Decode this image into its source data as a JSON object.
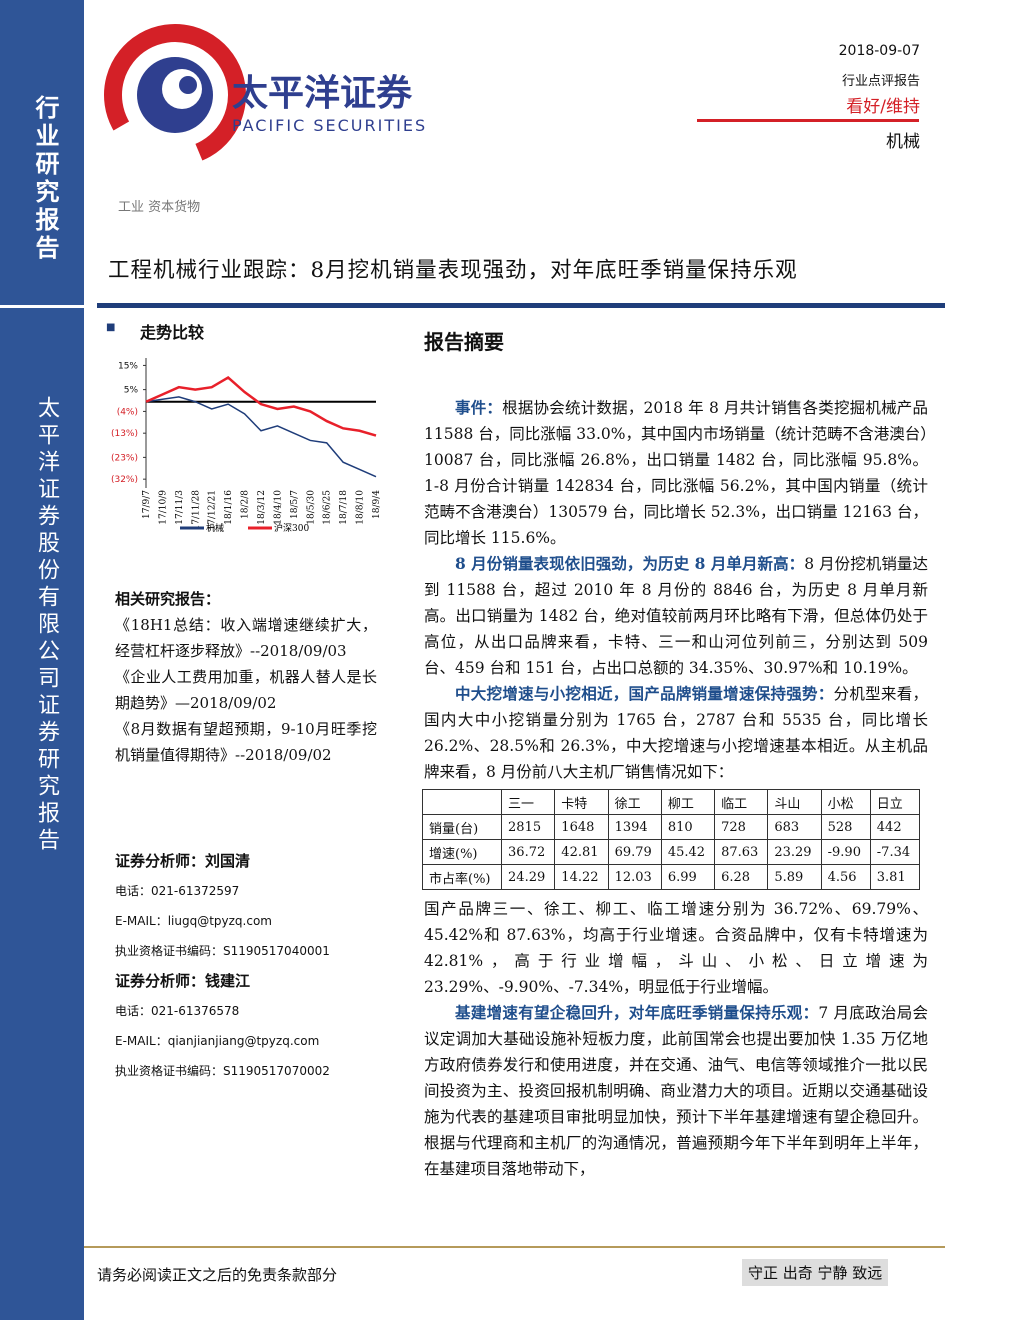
{
  "header": {
    "logo_cn": "太平洋证券",
    "logo_en": "PACIFIC SECURITIES",
    "date": "2018-09-07",
    "report_type": "行业点评报告",
    "rating": "看好/维持",
    "industry": "机械"
  },
  "sidebar": {
    "top": "行业研究报告",
    "bottom": "太平洋证券股份有限公司证券研究报告"
  },
  "sector": "工业 资本货物",
  "title": "工程机械行业跟踪：8月挖机销量表现强劲，对年底旺季销量保持乐观",
  "trend": {
    "heading": "走势比较",
    "chart": {
      "type": "line",
      "categories": [
        "17/9/7",
        "17/10/9",
        "17/11/3",
        "17/11/28",
        "17/12/21",
        "18/1/16",
        "18/2/8",
        "18/3/12",
        "18/4/10",
        "18/5/7",
        "18/5/30",
        "18/6/25",
        "18/7/18",
        "18/8/10",
        "18/9/4"
      ],
      "series": [
        {
          "name": "机械",
          "color": "#1f3d7a",
          "values": [
            0,
            1,
            2,
            0,
            -3,
            -1,
            -5,
            -12,
            -10,
            -13,
            -16,
            -17,
            -25,
            -28,
            -31
          ]
        },
        {
          "name": "沪深300",
          "color": "#e8202a",
          "values": [
            0,
            3,
            6,
            5,
            6,
            10,
            4,
            -1,
            -3,
            -2,
            -4,
            -8,
            -11,
            -12,
            -14
          ]
        }
      ],
      "ylim": [
        -34,
        16
      ],
      "yticks": [
        {
          "value": 15,
          "label": "15%"
        },
        {
          "value": 5,
          "label": "5%"
        },
        {
          "value": -4,
          "label": "(4%)"
        },
        {
          "value": -13,
          "label": "(13%)"
        },
        {
          "value": -23,
          "label": "(23%)"
        },
        {
          "value": -32,
          "label": "(32%)"
        }
      ]
    }
  },
  "related": {
    "heading": "相关研究报告：",
    "items": [
      "《18H1总结：收入端增速继续扩大，经营杠杆逐步释放》--2018/09/03",
      "《企业人工费用加重，机器人替人是长期趋势》—2018/09/02",
      "《8月数据有望超预期，9-10月旺季挖机销量值得期待》--2018/09/02"
    ]
  },
  "analysts": [
    {
      "role": "证券分析师：",
      "name": "刘国清",
      "phone": "电话：021-61372597",
      "email": "E-MAIL：liugq@tpyzq.com",
      "cert": "执业资格证书编码：S1190517040001"
    },
    {
      "role": "证券分析师：",
      "name": "钱建江",
      "phone": "电话：021-61376578",
      "email": "E-MAIL：qianjianjiang@tpyzq.com",
      "cert": "执业资格证书编码：S1190517070002"
    }
  ],
  "summary": {
    "heading": "报告摘要",
    "paragraphs": [
      {
        "lead": "事件：",
        "text": "根据协会统计数据，2018 年 8 月共计销售各类挖掘机械产品 11588 台，同比涨幅 33.0%，其中国内市场销量（统计范畴不含港澳台）10087 台，同比涨幅 26.8%，出口销量 1482 台，同比涨幅 95.8%。1-8 月份合计销量 142834 台，同比涨幅 56.2%，其中国内销量（统计范畴不含港澳台）130579 台，同比增长 52.3%，出口销量 12163 台，同比增长 115.6%。"
      },
      {
        "lead": "8 月份销量表现依旧强劲，为历史 8 月单月新高：",
        "text": "8 月份挖机销量达到 11588 台，超过 2010 年 8 月份的 8846 台，为历史 8 月单月新高。出口销量为 1482 台，绝对值较前两月环比略有下滑，但总体仍处于高位，从出口品牌来看，卡特、三一和山河位列前三，分别达到 509 台、459 台和 151 台，占出口总额的 34.35%、30.97%和 10.19%。"
      },
      {
        "lead": "中大挖增速与小挖相近，国产品牌销量增速保持强势：",
        "text": "分机型来看，国内大中小挖销量分别为 1765 台，2787 台和 5535 台，同比增长 26.2%、28.5%和 26.3%，中大挖增速与小挖增速基本相近。从主机品牌来看，8 月份前八大主机厂销售情况如下："
      }
    ],
    "table": {
      "columns": [
        "三一",
        "卡特",
        "徐工",
        "柳工",
        "临工",
        "斗山",
        "小松",
        "日立"
      ],
      "rows": [
        {
          "label": "销量(台)",
          "cells": [
            "2815",
            "1648",
            "1394",
            "810",
            "728",
            "683",
            "528",
            "442"
          ]
        },
        {
          "label": "增速(%)",
          "cells": [
            "36.72",
            "42.81",
            "69.79",
            "45.42",
            "87.63",
            "23.29",
            "-9.90",
            "-7.34"
          ]
        },
        {
          "label": "市占率(%)",
          "cells": [
            "24.29",
            "14.22",
            "12.03",
            "6.99",
            "6.28",
            "5.89",
            "4.56",
            "3.81"
          ]
        }
      ]
    },
    "paragraphs_after": [
      {
        "text": "国产品牌三一、徐工、柳工、临工增速分别为 36.72%、69.79%、45.42%和 87.63%，均高于行业增速。合资品牌中，仅有卡特增速为 42.81%，高于行业增幅，斗山、小松、日立增速为 23.29%、-9.90%、-7.34%，明显低于行业增幅。"
      },
      {
        "lead": "基建增速有望企稳回升，对年底旺季销量保持乐观：",
        "text": "7 月底政治局会议定调加大基础设施补短板力度，此前国常会也提出要加快 1.35 万亿地方政府债券发行和使用进度，并在交通、油气、电信等领域推介一批以民间投资为主、投资回报机制明确、商业潜力大的项目。近期以交通基础设施为代表的基建项目审批明显加快，预计下半年基建增速有望企稳回升。根据与代理商和主机厂的沟通情况，普遍预期今年下半年到明年上半年，在基建项目落地带动下，"
      }
    ]
  },
  "footer": {
    "disclaimer": "请务必阅读正文之后的免责条款部分",
    "motto": "守正 出奇 宁静 致远"
  }
}
